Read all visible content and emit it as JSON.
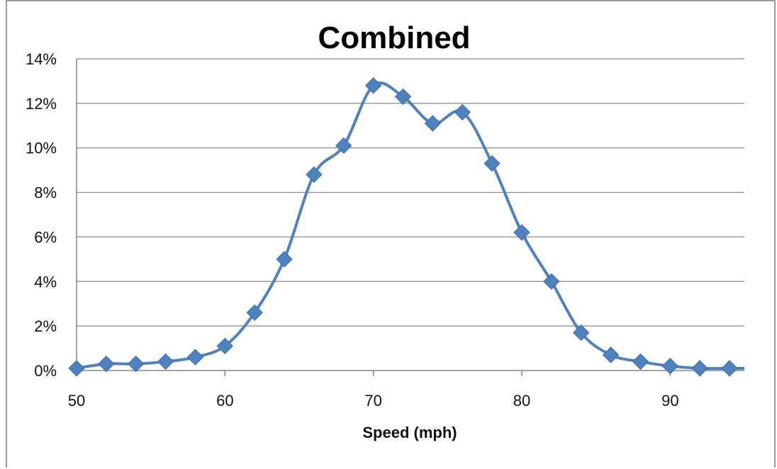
{
  "chart_data": {
    "type": "line",
    "title": "Combined",
    "xlabel": "Speed (mph)",
    "ylabel": "",
    "xlim": [
      50,
      95
    ],
    "ylim": [
      0,
      14
    ],
    "x_ticks": [
      50,
      60,
      70,
      80,
      90
    ],
    "y_ticks": [
      "0%",
      "2%",
      "4%",
      "6%",
      "8%",
      "10%",
      "12%",
      "14%"
    ],
    "y_tick_values": [
      0,
      2,
      4,
      6,
      8,
      10,
      12,
      14
    ],
    "grid": true,
    "legend": "none",
    "color": "#4F81BD",
    "marker": "diamond",
    "smooth": true,
    "x": [
      50,
      52,
      54,
      56,
      58,
      60,
      62,
      64,
      66,
      68,
      70,
      72,
      74,
      76,
      78,
      80,
      82,
      84,
      86,
      88,
      90,
      92,
      94
    ],
    "y": [
      0.1,
      0.3,
      0.3,
      0.4,
      0.6,
      1.1,
      2.6,
      5.0,
      8.8,
      10.1,
      12.8,
      12.3,
      11.1,
      11.6,
      9.3,
      6.2,
      4.0,
      1.7,
      0.7,
      0.4,
      0.2,
      0.1,
      0.1
    ]
  }
}
